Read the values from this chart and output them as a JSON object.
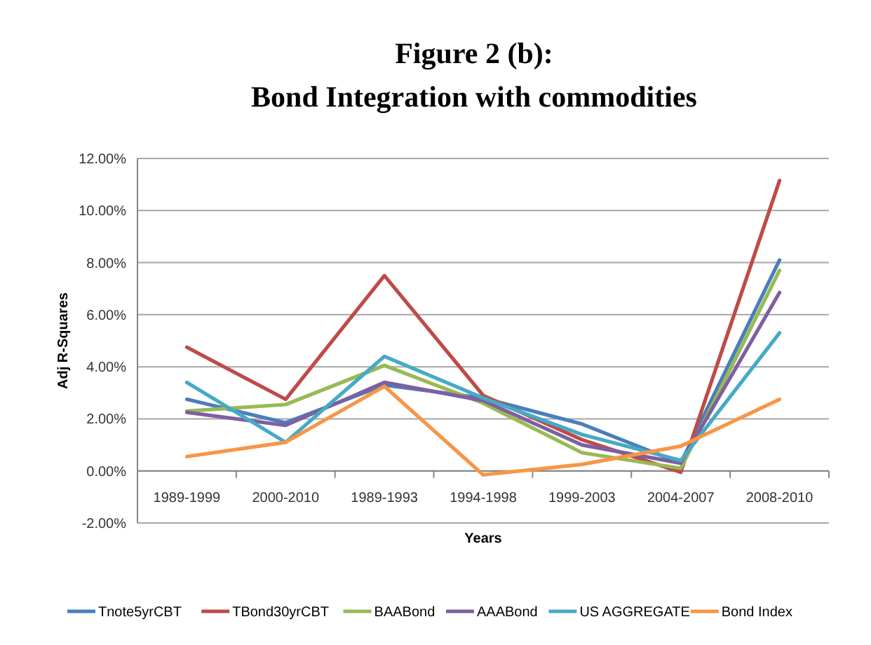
{
  "chart_data": {
    "type": "line",
    "title": "Figure 2 (b):",
    "subtitle": "Bond Integration with commodities",
    "xlabel": "Years",
    "ylabel": "Adj R-Squares",
    "categories": [
      "1989-1999",
      "2000-2010",
      "1989-1993",
      "1994-1998",
      "1999-2003",
      "2004-2007",
      "2008-2010"
    ],
    "ylim": [
      -2,
      12
    ],
    "yticks": [
      {
        "value": -2,
        "label": "-2.00%"
      },
      {
        "value": 0,
        "label": "0.00%"
      },
      {
        "value": 2,
        "label": "2.00%"
      },
      {
        "value": 4,
        "label": "4.00%"
      },
      {
        "value": 6,
        "label": "6.00%"
      },
      {
        "value": 8,
        "label": "8.00%"
      },
      {
        "value": 10,
        "label": "10.00%"
      },
      {
        "value": 12,
        "label": "12.00%"
      }
    ],
    "grid": "y",
    "legend": "bottom",
    "marker": "none",
    "line_style": "solid",
    "series": [
      {
        "name": "Tnote5yrCBT",
        "color": "#4a7ebb",
        "values": [
          2.75,
          1.85,
          3.3,
          2.8,
          1.8,
          0.3,
          8.1
        ]
      },
      {
        "name": "TBond30yrCBT",
        "color": "#be4b48",
        "values": [
          4.75,
          2.75,
          7.5,
          2.9,
          1.2,
          -0.05,
          11.15
        ]
      },
      {
        "name": "BAABond",
        "color": "#98b954",
        "values": [
          2.3,
          2.55,
          4.05,
          2.6,
          0.7,
          0.1,
          7.7
        ]
      },
      {
        "name": "AAABond",
        "color": "#7d60a0",
        "values": [
          2.25,
          1.75,
          3.4,
          2.7,
          1.0,
          0.3,
          6.85
        ]
      },
      {
        "name": "US AGGREGATE",
        "color": "#46aac5",
        "values": [
          3.4,
          1.1,
          4.4,
          2.8,
          1.4,
          0.4,
          5.3
        ]
      },
      {
        "name": "Bond Index",
        "color": "#f79646",
        "values": [
          0.55,
          1.1,
          3.25,
          -0.15,
          0.25,
          0.95,
          2.75
        ]
      }
    ]
  }
}
